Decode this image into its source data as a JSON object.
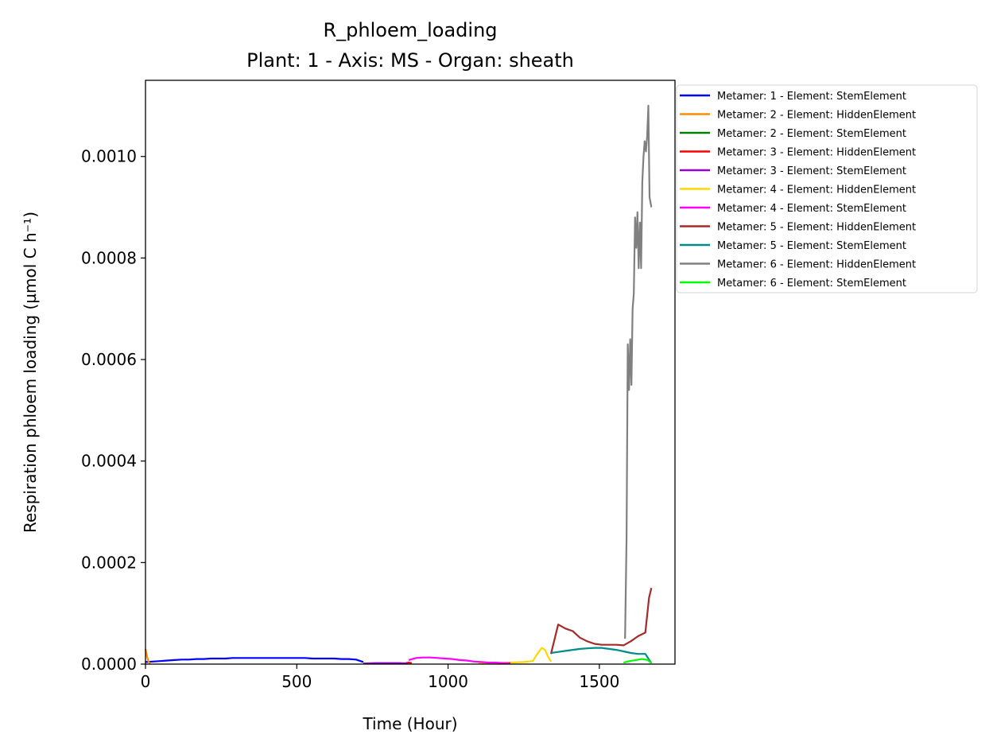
{
  "chart_data": {
    "type": "line",
    "title": "R_phloem_loading",
    "subtitle": "Plant: 1 - Axis: MS - Organ: sheath",
    "xlabel": "Time (Hour)",
    "ylabel": "Respiration phloem loading (µmol C h⁻¹)",
    "xlim": [
      0,
      1750
    ],
    "ylim": [
      0,
      0.00115
    ],
    "xticks": [
      0,
      500,
      1000,
      1500
    ],
    "xtick_labels": [
      "0",
      "500",
      "1000",
      "1500"
    ],
    "yticks": [
      0,
      0.0002,
      0.0004,
      0.0006,
      0.0008,
      0.001
    ],
    "ytick_labels": [
      "0.0000",
      "0.0002",
      "0.0004",
      "0.0006",
      "0.0008",
      "0.0010"
    ],
    "grid": false,
    "legend_position": "outside-top-right",
    "series": [
      {
        "name": "Metamer: 1 - Element: StemElement",
        "color": "#0000ff",
        "x": [
          0,
          24,
          48,
          72,
          96,
          120,
          144,
          168,
          192,
          216,
          240,
          264,
          288,
          312,
          336,
          360,
          384,
          408,
          432,
          456,
          480,
          504,
          528,
          552,
          576,
          600,
          624,
          648,
          672,
          696,
          720
        ],
        "y": [
          4e-06,
          5e-06,
          6e-06,
          7e-06,
          8e-06,
          9e-06,
          9e-06,
          1e-05,
          1e-05,
          1.1e-05,
          1.1e-05,
          1.1e-05,
          1.2e-05,
          1.2e-05,
          1.2e-05,
          1.2e-05,
          1.2e-05,
          1.2e-05,
          1.2e-05,
          1.2e-05,
          1.2e-05,
          1.2e-05,
          1.2e-05,
          1.1e-05,
          1.1e-05,
          1.1e-05,
          1.1e-05,
          1e-05,
          1e-05,
          9e-06,
          4e-06
        ]
      },
      {
        "name": "Metamer: 2 - Element: HiddenElement",
        "color": "#ff8c00",
        "x": [
          0,
          5,
          10,
          15
        ],
        "y": [
          3e-05,
          1.5e-05,
          5e-06,
          1e-06
        ]
      },
      {
        "name": "Metamer: 2 - Element: StemElement",
        "color": "#008000",
        "x": [
          720,
          760,
          800,
          840,
          870
        ],
        "y": [
          1e-06,
          1e-06,
          1e-06,
          1e-06,
          1e-06
        ]
      },
      {
        "name": "Metamer: 3 - Element: HiddenElement",
        "color": "#ff0000",
        "x": [
          860,
          870,
          880
        ],
        "y": [
          2e-06,
          3e-06,
          2e-06
        ]
      },
      {
        "name": "Metamer: 3 - Element: StemElement",
        "color": "#9400d3",
        "x": [
          720,
          760,
          800,
          840,
          870
        ],
        "y": [
          1e-06,
          2e-06,
          2e-06,
          2e-06,
          1e-06
        ]
      },
      {
        "name": "Metamer: 4 - Element: HiddenElement",
        "color": "#ffd700",
        "x": [
          1100,
          1150,
          1200,
          1250,
          1280,
          1295,
          1310,
          1320,
          1330,
          1340
        ],
        "y": [
          2e-06,
          2e-06,
          3e-06,
          4e-06,
          6e-06,
          2e-05,
          3.2e-05,
          2.8e-05,
          1.5e-05,
          5e-06
        ]
      },
      {
        "name": "Metamer: 4 - Element: StemElement",
        "color": "#ff00ff",
        "x": [
          870,
          894,
          918,
          942,
          966,
          990,
          1014,
          1038,
          1062,
          1086,
          1110,
          1134,
          1158,
          1182,
          1206
        ],
        "y": [
          8e-06,
          1.2e-05,
          1.3e-05,
          1.3e-05,
          1.2e-05,
          1.1e-05,
          1e-05,
          8e-06,
          7e-06,
          5e-06,
          4e-06,
          3e-06,
          3e-06,
          2e-06,
          2e-06
        ]
      },
      {
        "name": "Metamer: 5 - Element: HiddenElement",
        "color": "#a52a2a",
        "x": [
          1340,
          1364,
          1388,
          1412,
          1436,
          1460,
          1484,
          1508,
          1532,
          1556,
          1580,
          1604,
          1628,
          1652,
          1664,
          1672
        ],
        "y": [
          2e-05,
          7.8e-05,
          7e-05,
          6.5e-05,
          5.2e-05,
          4.5e-05,
          4e-05,
          3.8e-05,
          3.8e-05,
          3.8e-05,
          3.7e-05,
          4.5e-05,
          5.5e-05,
          6.2e-05,
          0.00013,
          0.00015
        ]
      },
      {
        "name": "Metamer: 5 - Element: StemElement",
        "color": "#008b8b",
        "x": [
          1340,
          1364,
          1388,
          1412,
          1436,
          1460,
          1484,
          1508,
          1532,
          1556,
          1580,
          1604,
          1628,
          1652,
          1672
        ],
        "y": [
          2.2e-05,
          2.4e-05,
          2.6e-05,
          2.8e-05,
          3e-05,
          3.1e-05,
          3.2e-05,
          3.2e-05,
          3e-05,
          2.8e-05,
          2.5e-05,
          2.2e-05,
          2e-05,
          2e-05,
          2e-06
        ]
      },
      {
        "name": "Metamer: 6 - Element: HiddenElement",
        "color": "#808080",
        "x": [
          1585,
          1590,
          1594,
          1598,
          1602,
          1606,
          1610,
          1614,
          1618,
          1622,
          1626,
          1630,
          1634,
          1638,
          1642,
          1646,
          1650,
          1654,
          1658,
          1662,
          1666,
          1672
        ],
        "y": [
          5e-05,
          0.00025,
          0.00063,
          0.00054,
          0.00064,
          0.00055,
          0.0007,
          0.00073,
          0.00088,
          0.00082,
          0.00089,
          0.00078,
          0.00087,
          0.00078,
          0.00095,
          0.001,
          0.00103,
          0.00101,
          0.00104,
          0.0011,
          0.00092,
          0.0009
        ]
      },
      {
        "name": "Metamer: 6 - Element: StemElement",
        "color": "#00ff00",
        "x": [
          1580,
          1600,
          1620,
          1640,
          1660,
          1672
        ],
        "y": [
          3e-06,
          6e-06,
          8e-06,
          1e-05,
          8e-06,
          2e-06
        ]
      }
    ]
  }
}
